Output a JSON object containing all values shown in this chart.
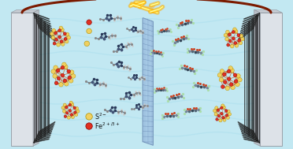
{
  "bg_color": "#c2e8f2",
  "wire_color": "#7B1A00",
  "s_color": "#f0d060",
  "fe_color": "#e03020",
  "sep_color": "#a8cce8",
  "lightning_color": "#FFD700",
  "lightning_glow": "#FF8C00",
  "graphene_dark": "#1a1a1a",
  "graphene_edge": "#444444",
  "electrode_white": "#dde2e8",
  "electrode_edge": "#9aa0a8",
  "legend_s_label": "S²⁻",
  "legend_fe_label": "Fe²⁺/³⁺"
}
